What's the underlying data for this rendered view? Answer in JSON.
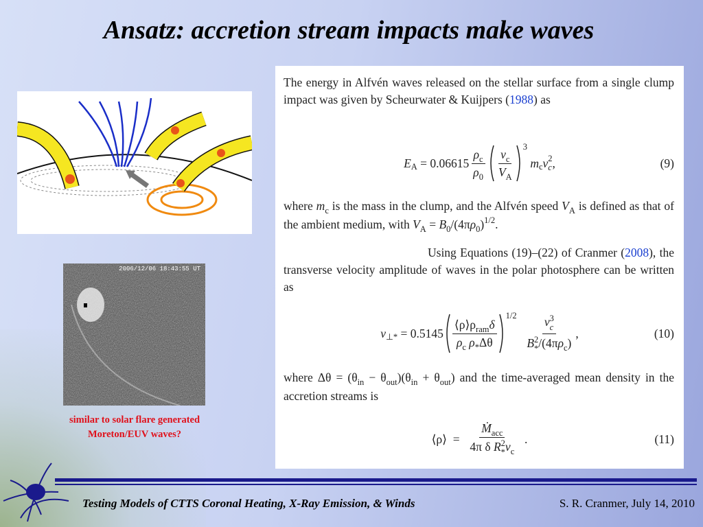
{
  "title": "Ansatz:  accretion stream impacts make waves",
  "image_timestamp": "2006/12/06 18:43:55 UT",
  "caption": [
    "similar to solar flare generated",
    "Moreton/EUV waves?"
  ],
  "paper": {
    "p1": [
      "The energy in Alfvén waves released on the stellar surface from a single clump impact was given by Scheurwater & Kuijpers (",
      "1988",
      ") as"
    ],
    "eq9": {
      "lhs": "E",
      "lhs_sub": "A",
      "equals": "=",
      "coef": "0.06615",
      "f1_num": "ρ",
      "f1_num_sub": "c",
      "f1_den": "ρ",
      "f1_den_sub": "0",
      "f2_num": "v",
      "f2_num_sub": "c",
      "f2_den": "V",
      "f2_den_sub": "A",
      "power": "3",
      "m": "m",
      "m_sub": "c",
      "v": "v",
      "v_sub": "c",
      "v_sup": "2",
      "end": ",",
      "number": "(9)"
    },
    "p2": [
      "where ",
      "m",
      "c",
      " is the mass in the clump, and the Alfvén speed ",
      "V",
      "A",
      " is defined as that of the ambient medium, with ",
      "V",
      "A",
      " = ",
      "B",
      "0",
      "/(4π",
      "ρ",
      "0",
      ")",
      "1/2",
      "."
    ],
    "p3": [
      "Using Equations (19)–(22) of Cranmer (",
      "2008",
      "), the transverse velocity amplitude of waves in the polar photosphere can be written as"
    ],
    "eq10": {
      "lhs": "v",
      "lhs_sub": "⊥*",
      "equals": "=",
      "coef": "0.5145",
      "f1_num": [
        "⟨ρ⟩ρ",
        "ram",
        "δ"
      ],
      "f1_den": [
        "ρ",
        "c",
        " ρ",
        "*",
        "Δθ"
      ],
      "power": "1/2",
      "f2_num": [
        "v",
        "c",
        "3"
      ],
      "f2_den": [
        "B",
        "*",
        "2",
        "/(4π",
        "ρ",
        "c",
        ")"
      ],
      "end": ",",
      "number": "(10)"
    },
    "p4": [
      "where Δθ = (θ",
      "in",
      " − θ",
      "out",
      ")(θ",
      "in",
      " + θ",
      "out",
      ") and the time-averaged mean density in the accretion streams is"
    ],
    "eq11": {
      "lhs": "⟨ρ⟩",
      "equals": "=",
      "num": [
        "Ṁ",
        "acc"
      ],
      "den": [
        "4π δ ",
        "R",
        "*",
        "2",
        "v",
        "c"
      ],
      "end": ".",
      "number": "(11)"
    }
  },
  "footer": {
    "left": "Testing Models of CTTS Coronal Heating, X-Ray Emission, & Winds",
    "right": "S. R. Cranmer, July 14, 2010"
  }
}
